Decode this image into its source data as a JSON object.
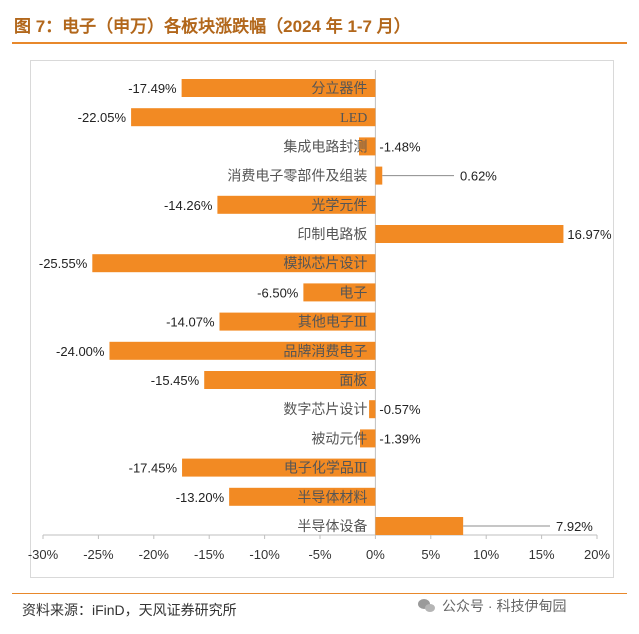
{
  "header": {
    "title": "图 7：电子（申万）各板块涨跌幅（2024 年 1-7 月）"
  },
  "footer": {
    "source": "资料来源：iFinD，天风证券研究所",
    "watermark": "公众号 · 科技伊甸园",
    "watermark_icon": "wechat-icon"
  },
  "chart_data": {
    "type": "bar",
    "orientation": "horizontal",
    "title": "",
    "xlabel": "",
    "ylabel": "",
    "categories": [
      "分立器件",
      "LED",
      "集成电路封测",
      "消费电子零部件及组装",
      "光学元件",
      "印制电路板",
      "模拟芯片设计",
      "电子",
      "其他电子Ⅲ",
      "品牌消费电子",
      "面板",
      "数字芯片设计",
      "被动元件",
      "电子化学品Ⅲ",
      "半导体材料",
      "半导体设备"
    ],
    "values": [
      -17.49,
      -22.05,
      -1.48,
      0.62,
      -14.26,
      16.97,
      -25.55,
      -6.5,
      -14.07,
      -24.0,
      -15.45,
      -0.57,
      -1.39,
      -17.45,
      -13.2,
      7.92
    ],
    "value_labels": [
      "-17.49%",
      "-22.05%",
      "-1.48%",
      "0.62%",
      "-14.26%",
      "16.97%",
      "-25.55%",
      "-6.50%",
      "-14.07%",
      "-24.00%",
      "-15.45%",
      "-0.57%",
      "-1.39%",
      "-17.45%",
      "-13.20%",
      "7.92%"
    ],
    "xlim": [
      -30,
      20
    ],
    "xticks": [
      -30,
      -25,
      -20,
      -15,
      -10,
      -5,
      0,
      5,
      10,
      15,
      20
    ],
    "xtick_labels": [
      "-30%",
      "-25%",
      "-20%",
      "-15%",
      "-10%",
      "-5%",
      "0%",
      "5%",
      "10%",
      "15%",
      "20%"
    ],
    "bar_color": "#f28a23",
    "grid": false,
    "legend": "none"
  }
}
